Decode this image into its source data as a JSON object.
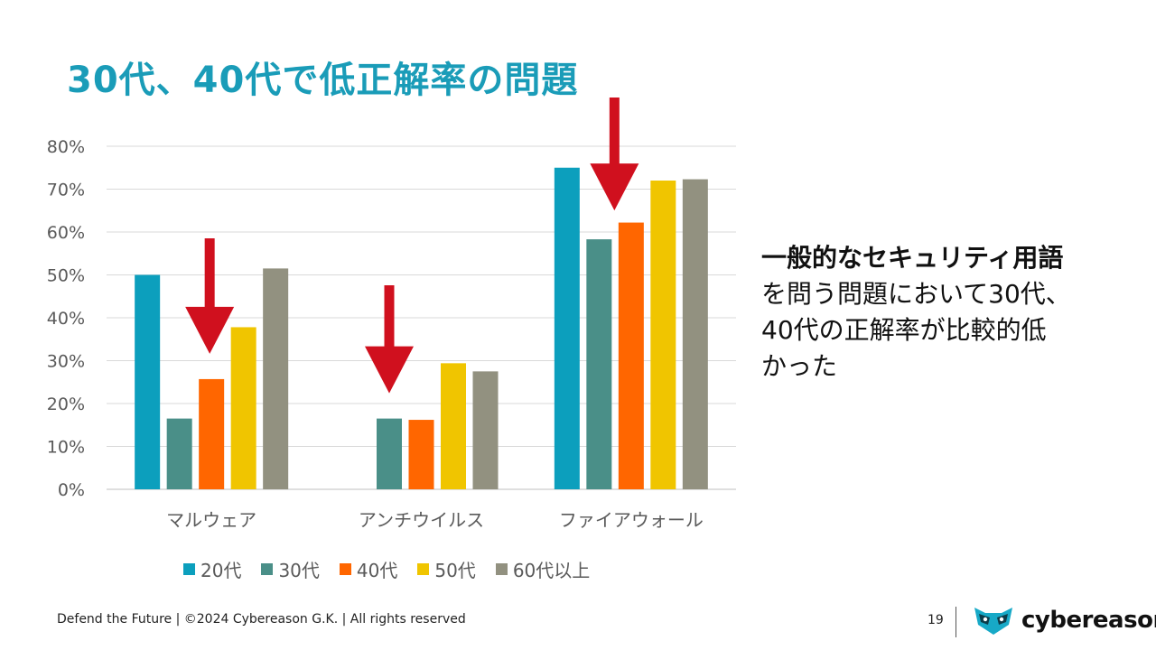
{
  "title": "30代、40代で低正解率の問題",
  "side_text": {
    "bold_line": "一般的なセキュリティ用語",
    "lines": [
      "を問う問題において30代、",
      "40代の正解率が比較的低",
      "かった"
    ]
  },
  "footer": {
    "text": "Defend the Future | ©2024 Cybereason G.K. | All rights reserved",
    "page_number": "19",
    "logo_text": "cybereason"
  },
  "colors": {
    "title": "#1a9cb8",
    "arrow": "#d0101e",
    "gridline": "#d9d9d9",
    "logo_accent": "#17a9c7"
  },
  "chart_data": {
    "type": "bar",
    "categories": [
      "マルウェア",
      "アンチウイルス",
      "ファイアウォール"
    ],
    "ylim": [
      0,
      80
    ],
    "yticks": [
      "0%",
      "10%",
      "20%",
      "30%",
      "40%",
      "50%",
      "60%",
      "70%",
      "80%"
    ],
    "grid": true,
    "legend_position": "bottom",
    "series": [
      {
        "name": "20代",
        "color": "#0c9fbd",
        "values": [
          50,
          null,
          75
        ]
      },
      {
        "name": "30代",
        "color": "#4a8f88",
        "values": [
          16.5,
          16.5,
          58.3
        ]
      },
      {
        "name": "40代",
        "color": "#ff6600",
        "values": [
          25.7,
          16.2,
          62.2
        ]
      },
      {
        "name": "50代",
        "color": "#f0c500",
        "values": [
          37.8,
          29.4,
          72
        ]
      },
      {
        "name": "60代以上",
        "color": "#929180",
        "values": [
          51.5,
          27.5,
          72.3
        ]
      }
    ],
    "annotations": [
      {
        "type": "arrow",
        "category": "マルウェア",
        "target_series": "40代"
      },
      {
        "type": "arrow",
        "category": "アンチウイルス",
        "target_series": "30代"
      },
      {
        "type": "arrow",
        "category": "ファイアウォール",
        "target_series": "30代"
      }
    ]
  }
}
